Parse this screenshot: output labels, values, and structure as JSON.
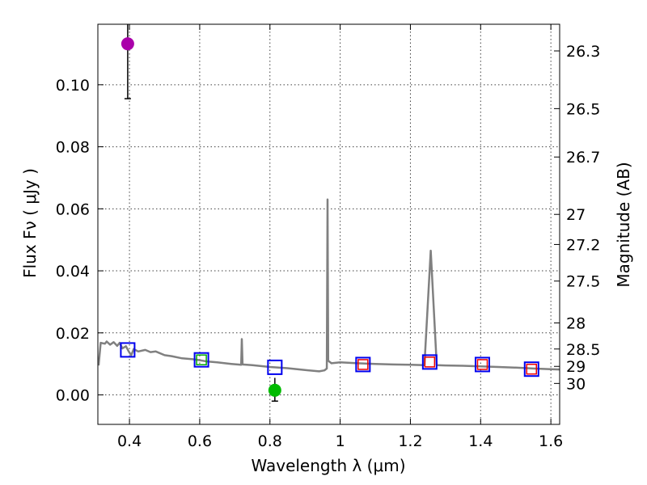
{
  "chart_data": {
    "type": "scatter",
    "xlabel": "Wavelength  λ (μm)",
    "ylabel": "Flux  Fν  ( μJy )",
    "y2label": "Magnitude (AB)",
    "xlim": [
      0.31,
      1.625
    ],
    "ylim": [
      -0.0095,
      0.1195
    ],
    "grid": true,
    "xticks": [
      0.4,
      0.6,
      0.8,
      1.0,
      1.2,
      1.4,
      1.6
    ],
    "xtick_labels": [
      "0.4",
      "0.6",
      "0.8",
      "1",
      "1.2",
      "1.4",
      "1.6"
    ],
    "yticks": [
      0.0,
      0.02,
      0.04,
      0.06,
      0.08,
      0.1
    ],
    "ytick_labels": [
      "0.00",
      "0.02",
      "0.04",
      "0.06",
      "0.08",
      "0.10"
    ],
    "mag_ticks": [
      {
        "flux": 0.1109,
        "label": "26.3"
      },
      {
        "flux": 0.0923,
        "label": "26.5"
      },
      {
        "flux": 0.0767,
        "label": "26.7"
      },
      {
        "flux": 0.0582,
        "label": "27"
      },
      {
        "flux": 0.0485,
        "label": "27.2"
      },
      {
        "flux": 0.0367,
        "label": "27.5"
      },
      {
        "flux": 0.0232,
        "label": "28"
      },
      {
        "flux": 0.0148,
        "label": "28.5"
      },
      {
        "flux": 0.0092,
        "label": "29"
      },
      {
        "flux": 0.0037,
        "label": "30"
      }
    ],
    "photometry": [
      {
        "x": 0.395,
        "y": 0.1132,
        "err_low": 0.0955,
        "err_high": 0.1205,
        "color": "#aa00aa"
      },
      {
        "x": 0.814,
        "y": 0.0015,
        "err_low": -0.002,
        "err_high": 0.0055,
        "color": "#00bb00"
      }
    ],
    "model_blue_squares": [
      {
        "x": 0.395,
        "y": 0.0145
      },
      {
        "x": 0.605,
        "y": 0.0113
      },
      {
        "x": 0.814,
        "y": 0.0089
      },
      {
        "x": 1.065,
        "y": 0.0098
      },
      {
        "x": 1.255,
        "y": 0.0106
      },
      {
        "x": 1.405,
        "y": 0.0098
      },
      {
        "x": 1.545,
        "y": 0.0083
      }
    ],
    "inner_squares": [
      {
        "x": 0.605,
        "y": 0.0113,
        "color": "#00aa00"
      },
      {
        "x": 1.065,
        "y": 0.0098,
        "color": "#ee0000"
      },
      {
        "x": 1.255,
        "y": 0.0106,
        "color": "#ee0000"
      },
      {
        "x": 1.405,
        "y": 0.0098,
        "color": "#ee0000"
      },
      {
        "x": 1.545,
        "y": 0.0083,
        "color": "#ee0000"
      }
    ],
    "spectrum": {
      "color": "#808080",
      "points": [
        [
          0.312,
          0.0095
        ],
        [
          0.318,
          0.0168
        ],
        [
          0.33,
          0.0165
        ],
        [
          0.335,
          0.0172
        ],
        [
          0.345,
          0.0162
        ],
        [
          0.355,
          0.017
        ],
        [
          0.365,
          0.0158
        ],
        [
          0.372,
          0.0168
        ],
        [
          0.38,
          0.015
        ],
        [
          0.39,
          0.0157
        ],
        [
          0.398,
          0.014
        ],
        [
          0.405,
          0.0128
        ],
        [
          0.412,
          0.0148
        ],
        [
          0.425,
          0.014
        ],
        [
          0.445,
          0.0145
        ],
        [
          0.46,
          0.0138
        ],
        [
          0.475,
          0.014
        ],
        [
          0.5,
          0.0128
        ],
        [
          0.52,
          0.0125
        ],
        [
          0.55,
          0.0118
        ],
        [
          0.58,
          0.0115
        ],
        [
          0.6,
          0.0112
        ],
        [
          0.62,
          0.0108
        ],
        [
          0.65,
          0.0105
        ],
        [
          0.69,
          0.01
        ],
        [
          0.718,
          0.0097
        ],
        [
          0.72,
          0.018
        ],
        [
          0.722,
          0.0098
        ],
        [
          0.75,
          0.0096
        ],
        [
          0.8,
          0.009
        ],
        [
          0.85,
          0.0086
        ],
        [
          0.9,
          0.008
        ],
        [
          0.94,
          0.0076
        ],
        [
          0.955,
          0.0079
        ],
        [
          0.962,
          0.0085
        ],
        [
          0.964,
          0.063
        ],
        [
          0.966,
          0.011
        ],
        [
          0.975,
          0.0102
        ],
        [
          1.0,
          0.0105
        ],
        [
          1.05,
          0.0102
        ],
        [
          1.1,
          0.01
        ],
        [
          1.15,
          0.0098
        ],
        [
          1.2,
          0.0097
        ],
        [
          1.24,
          0.0096
        ],
        [
          1.258,
          0.0465
        ],
        [
          1.275,
          0.0096
        ],
        [
          1.3,
          0.0095
        ],
        [
          1.35,
          0.0094
        ],
        [
          1.4,
          0.0092
        ],
        [
          1.45,
          0.009
        ],
        [
          1.5,
          0.0088
        ],
        [
          1.55,
          0.0085
        ],
        [
          1.6,
          0.0083
        ],
        [
          1.625,
          0.0082
        ]
      ]
    }
  }
}
